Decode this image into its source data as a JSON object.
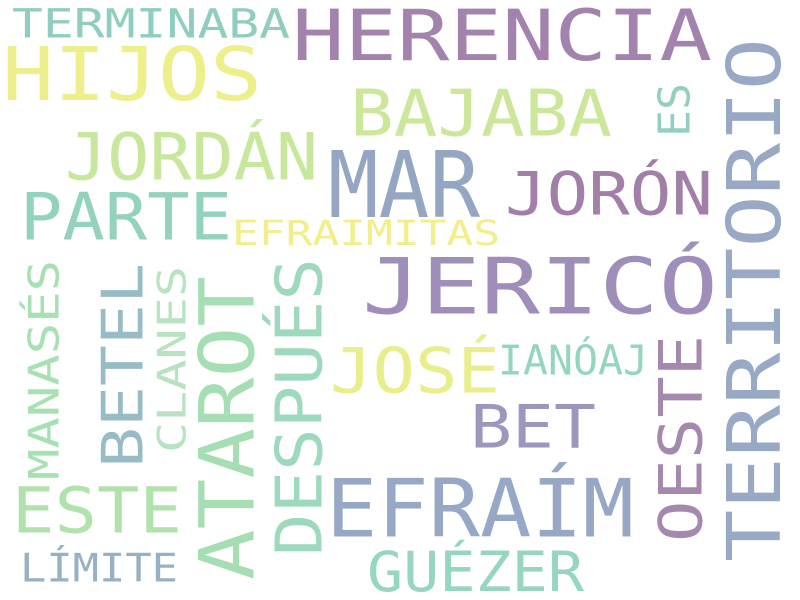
{
  "words": [
    {
      "text": "HERENCIA",
      "color": "#a383ad",
      "orientation": "horizontal"
    },
    {
      "text": "TERMINABA",
      "color": "#8fcdbf",
      "orientation": "horizontal"
    },
    {
      "text": "HIJOS",
      "color": "#ecef8a",
      "orientation": "horizontal"
    },
    {
      "text": "BAJABA",
      "color": "#cde79a",
      "orientation": "horizontal"
    },
    {
      "text": "ES",
      "color": "#92cfc0",
      "orientation": "vertical"
    },
    {
      "text": "JORDÁN",
      "color": "#c7e89c",
      "orientation": "horizontal"
    },
    {
      "text": "MAR",
      "color": "#95a6c2",
      "orientation": "horizontal"
    },
    {
      "text": "JORÓN",
      "color": "#a27fa8",
      "orientation": "horizontal"
    },
    {
      "text": "TERRITORIO",
      "color": "#98a9c6",
      "orientation": "vertical"
    },
    {
      "text": "PARTE",
      "color": "#93d2bd",
      "orientation": "horizontal"
    },
    {
      "text": "EFRAIMITAS",
      "color": "#f1ef8c",
      "orientation": "horizontal"
    },
    {
      "text": "JERICÓ",
      "color": "#9e8eb9",
      "orientation": "horizontal"
    },
    {
      "text": "MANASÉS",
      "color": "#a6e2b1",
      "orientation": "vertical"
    },
    {
      "text": "BETEL",
      "color": "#98bcc6",
      "orientation": "vertical"
    },
    {
      "text": "CLANES",
      "color": "#b7e3c0",
      "orientation": "vertical"
    },
    {
      "text": "ATAROT",
      "color": "#a4deb2",
      "orientation": "vertical"
    },
    {
      "text": "DESPUÉS",
      "color": "#9dd9bd",
      "orientation": "vertical"
    },
    {
      "text": "JOSÉ",
      "color": "#e9ee8d",
      "orientation": "horizontal"
    },
    {
      "text": "IANÓAJ",
      "color": "#94d5c0",
      "orientation": "horizontal"
    },
    {
      "text": "OESTE",
      "color": "#a488ad",
      "orientation": "vertical"
    },
    {
      "text": "BET",
      "color": "#9e96bd",
      "orientation": "horizontal"
    },
    {
      "text": "ESTE",
      "color": "#b2e2ac",
      "orientation": "horizontal"
    },
    {
      "text": "EFRAÍM",
      "color": "#96a8c5",
      "orientation": "horizontal"
    },
    {
      "text": "LÍMITE",
      "color": "#98b0c4",
      "orientation": "horizontal"
    },
    {
      "text": "GUÉZER",
      "color": "#96d5bf",
      "orientation": "horizontal"
    }
  ]
}
